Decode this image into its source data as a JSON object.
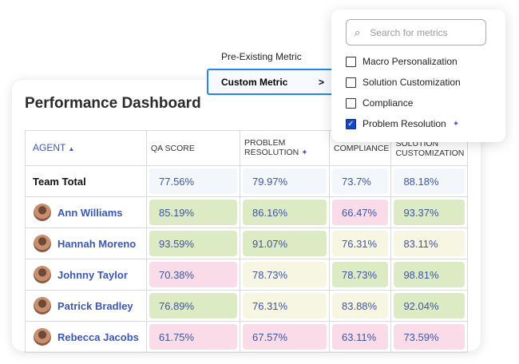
{
  "dashboard": {
    "title": "Performance Dashboard"
  },
  "menu": {
    "pre_existing": "Pre-Existing Metric",
    "custom": "Custom Metric",
    "custom_chevron": ">"
  },
  "popup": {
    "search_placeholder": "Search for metrics",
    "options": [
      {
        "label": "Macro Personalization",
        "checked": false
      },
      {
        "label": "Solution Customization",
        "checked": false
      },
      {
        "label": "Compliance",
        "checked": false
      },
      {
        "label": "Problem Resolution",
        "checked": true,
        "ai": true
      }
    ]
  },
  "table": {
    "headers": {
      "agent": "AGENT",
      "sort": "▲",
      "qa": "QA SCORE",
      "pr1": "PROBLEM",
      "pr2": "RESOLUTION",
      "comp": "COMPLIANCE",
      "sol1": "SOLUTION",
      "sol2": "CUSTOMIZATION"
    },
    "team_total": {
      "label": "Team Total",
      "values": [
        "77.56%",
        "79.97%",
        "73.7%",
        "88.18%"
      ]
    },
    "rows": [
      {
        "name": "Ann Williams",
        "values": [
          "85.19%",
          "86.16%",
          "66.47%",
          "93.37%"
        ],
        "status": [
          "good",
          "good",
          "poor",
          "good"
        ]
      },
      {
        "name": "Hannah Moreno",
        "values": [
          "93.59%",
          "91.07%",
          "76.31%",
          "83.11%"
        ],
        "status": [
          "good",
          "good",
          "fair",
          "fair"
        ]
      },
      {
        "name": "Johnny Taylor",
        "values": [
          "70.38%",
          "78.73%",
          "78.73%",
          "98.81%"
        ],
        "status": [
          "poor",
          "fair",
          "good",
          "good"
        ]
      },
      {
        "name": "Patrick Bradley",
        "values": [
          "76.89%",
          "76.31%",
          "83.88%",
          "92.04%"
        ],
        "status": [
          "good",
          "fair",
          "fair",
          "good"
        ]
      },
      {
        "name": "Rebecca Jacobs",
        "values": [
          "61.75%",
          "67.57%",
          "63.11%",
          "73.59%"
        ],
        "status": [
          "poor",
          "poor",
          "poor",
          "poor"
        ]
      }
    ]
  },
  "colors": {
    "good": "#dcebc4",
    "fair": "#f6f6e3",
    "poor": "#fadbe8",
    "accent": "#3b57b5"
  }
}
